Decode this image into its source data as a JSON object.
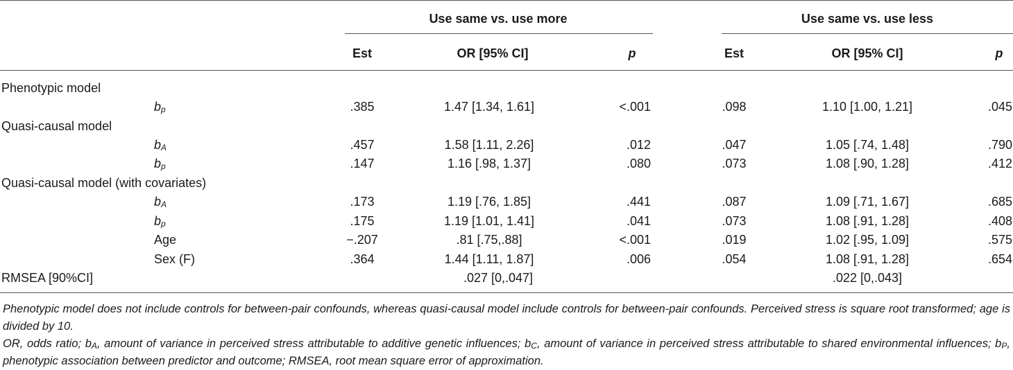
{
  "header": {
    "group_a": "Use same vs. use more",
    "group_b": "Use same vs. use less",
    "columns": [
      "Est",
      "OR [95% CI]",
      "p",
      "Est",
      "OR [95% CI]",
      "p"
    ]
  },
  "rows": [
    {
      "kind": "section",
      "label": "Phenotypic model"
    },
    {
      "kind": "param",
      "sym": "b",
      "sub": "p",
      "a_est": ".385",
      "a_or": "1.47 [1.34, 1.61]",
      "a_p": "<.001",
      "b_est": ".098",
      "b_or": "1.10 [1.00, 1.21]",
      "b_p": ".045"
    },
    {
      "kind": "section",
      "label": "Quasi-causal model"
    },
    {
      "kind": "param",
      "sym": "b",
      "sub": "A",
      "a_est": ".457",
      "a_or": "1.58 [1.11, 2.26]",
      "a_p": ".012",
      "b_est": ".047",
      "b_or": "1.05 [.74, 1.48]",
      "b_p": ".790"
    },
    {
      "kind": "param",
      "sym": "b",
      "sub": "p",
      "a_est": ".147",
      "a_or": "1.16 [.98, 1.37]",
      "a_p": ".080",
      "b_est": ".073",
      "b_or": "1.08 [.90, 1.28]",
      "b_p": ".412"
    },
    {
      "kind": "section",
      "label": "Quasi-causal model (with covariates)"
    },
    {
      "kind": "param",
      "sym": "b",
      "sub": "A",
      "a_est": ".173",
      "a_or": "1.19 [.76, 1.85]",
      "a_p": ".441",
      "b_est": ".087",
      "b_or": "1.09 [.71, 1.67]",
      "b_p": ".685"
    },
    {
      "kind": "param",
      "sym": "b",
      "sub": "p",
      "a_est": ".175",
      "a_or": "1.19 [1.01, 1.41]",
      "a_p": ".041",
      "b_est": ".073",
      "b_or": "1.08 [.91, 1.28]",
      "b_p": ".408"
    },
    {
      "kind": "param",
      "label": "Age",
      "a_est": "−.207",
      "a_or": ".81 [.75,.88]",
      "a_p": "<.001",
      "b_est": ".019",
      "b_or": "1.02 [.95, 1.09]",
      "b_p": ".575"
    },
    {
      "kind": "param",
      "label": "Sex (F)",
      "a_est": ".364",
      "a_or": "1.44 [1.11, 1.87]",
      "a_p": ".006",
      "b_est": ".054",
      "b_or": "1.08 [.91, 1.28]",
      "b_p": ".654"
    },
    {
      "kind": "rmsea",
      "label": "RMSEA [90%CI]",
      "a_or": ".027 [0,.047]",
      "b_or": ".022 [0,.043]"
    }
  ],
  "footnotes": [
    "Phenotypic model does not include controls for between-pair confounds, whereas quasi-causal model include controls for between-pair confounds. Perceived stress is square root transformed; age is divided by 10.",
    {
      "pre": "OR, odds ratio; ",
      "s1": "b",
      "s1_sub": "A",
      "t1": ", amount of variance in perceived stress attributable to additive genetic influences; ",
      "s2": "b",
      "s2_sub": "C",
      "t2": ", amount of variance in perceived stress attributable to shared environmental influences; ",
      "s3": "b",
      "s3_sub": "P",
      "t3": ", phenotypic association between predictor and outcome; RMSEA, root mean square error of approximation."
    }
  ]
}
